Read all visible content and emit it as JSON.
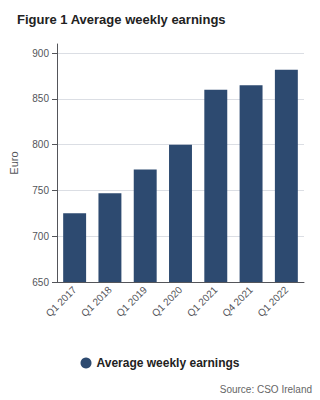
{
  "chart_data": {
    "type": "bar",
    "title": "Figure 1 Average weekly earnings",
    "categories": [
      "Q1 2017",
      "Q1 2018",
      "Q1 2019",
      "Q1 2020",
      "Q1 2021",
      "Q4 2021",
      "Q1 2022"
    ],
    "series": [
      {
        "name": "Average weekly earnings",
        "color": "#2d4a70",
        "values": [
          725,
          747,
          773,
          800,
          860,
          865,
          882
        ]
      }
    ],
    "ylabel": "Euro",
    "ylim": [
      650,
      910
    ],
    "yticks": [
      650,
      700,
      750,
      800,
      850,
      900
    ],
    "grid": true,
    "legend": "bottom",
    "annotation": "Source: CSO Ireland"
  }
}
